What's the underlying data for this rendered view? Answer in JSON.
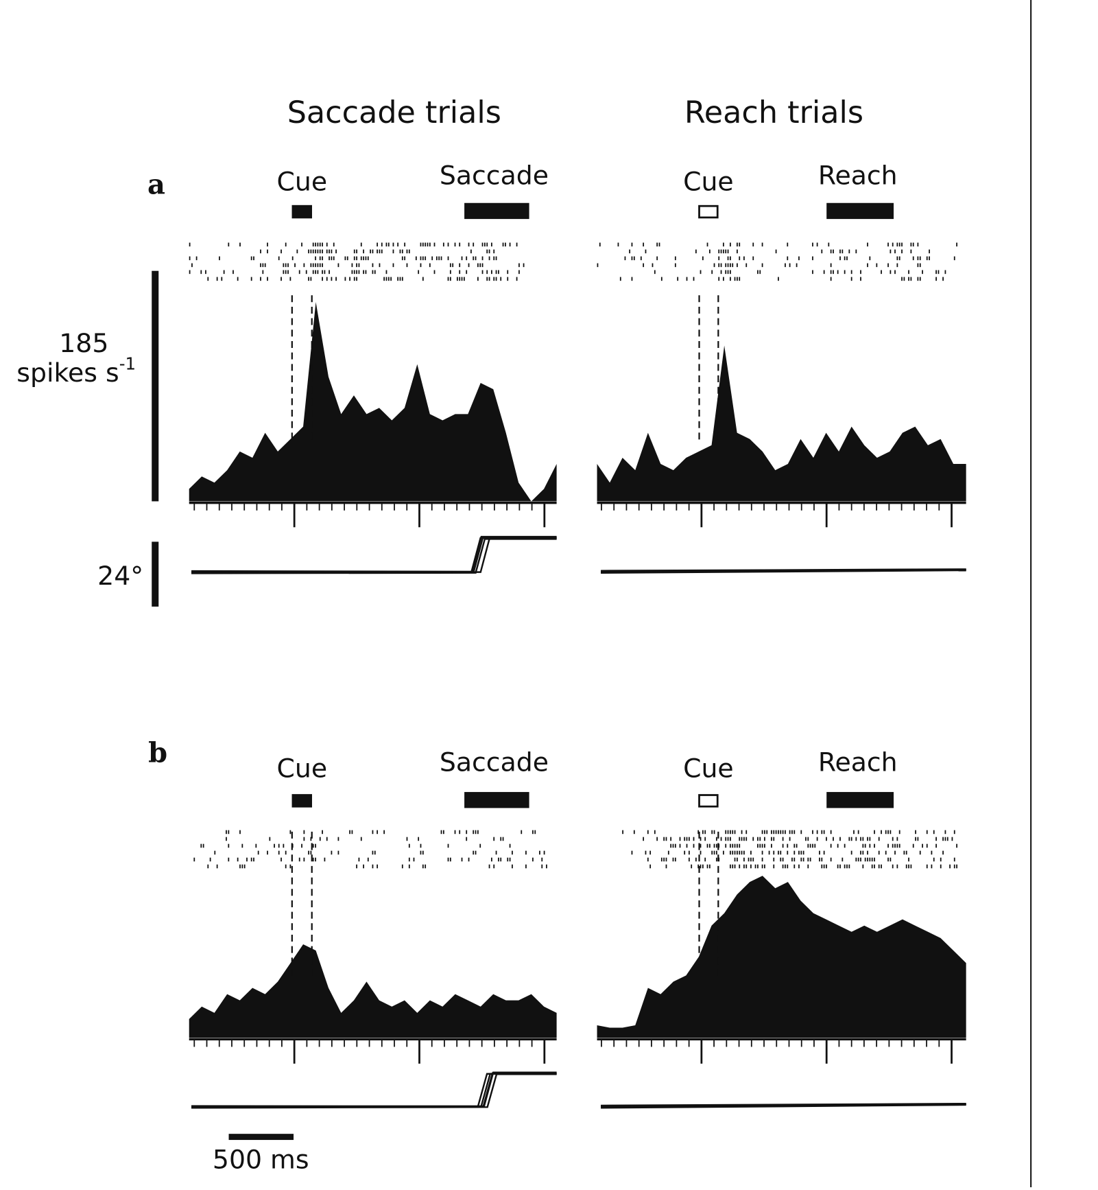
{
  "columns": [
    "Saccade trials",
    "Reach trials"
  ],
  "scale_bars": {
    "rate": 185,
    "rate_unit": "spikes s",
    "rate_unit_exp": "-1",
    "eye": "24°",
    "time": "500 ms"
  },
  "panels": [
    {
      "label": "a",
      "saccade": {
        "cue": "Cue",
        "event": "Saccade",
        "rate": [
          10,
          20,
          15,
          25,
          40,
          35,
          55,
          40,
          50,
          60,
          160,
          100,
          70,
          85,
          70,
          75,
          65,
          75,
          110,
          70,
          65,
          70,
          70,
          95,
          90,
          55,
          15,
          0,
          10,
          30
        ]
      },
      "reach": {
        "cue": "Cue",
        "event": "Reach",
        "rate": [
          30,
          15,
          35,
          25,
          55,
          30,
          25,
          35,
          40,
          45,
          125,
          55,
          50,
          40,
          25,
          30,
          50,
          35,
          55,
          40,
          60,
          45,
          35,
          40,
          55,
          60,
          45,
          50,
          30,
          30
        ]
      }
    },
    {
      "label": "b",
      "saccade": {
        "cue": "Cue",
        "event": "Saccade",
        "rate": [
          15,
          25,
          20,
          35,
          30,
          40,
          35,
          45,
          60,
          75,
          70,
          40,
          20,
          30,
          45,
          30,
          25,
          30,
          20,
          30,
          25,
          35,
          30,
          25,
          35,
          30,
          30,
          35,
          25,
          20
        ]
      },
      "reach": {
        "cue": "Cue",
        "event": "Reach",
        "rate": [
          10,
          8,
          8,
          10,
          40,
          35,
          45,
          50,
          65,
          90,
          100,
          115,
          125,
          130,
          120,
          125,
          110,
          100,
          95,
          90,
          85,
          90,
          85,
          90,
          95,
          90,
          85,
          80,
          70,
          60
        ]
      }
    }
  ]
}
